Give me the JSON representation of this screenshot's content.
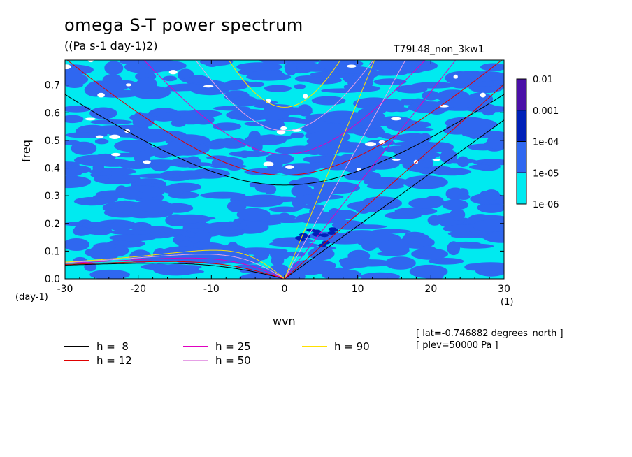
{
  "chart_data": {
    "type": "heatmap",
    "title": "omega S-T power spectrum",
    "subtitle": "((Pa s-1 day-1)2)",
    "run_label": "T79L48_non_3kw1",
    "xlabel": "wvn",
    "ylabel": "freq",
    "x_unit": "(1)",
    "y_unit": "(day-1)",
    "xlim": [
      -30,
      30
    ],
    "ylim": [
      0,
      0.79
    ],
    "x_ticks": [
      -30,
      -20,
      -10,
      0,
      10,
      20,
      30
    ],
    "x_tick_labels": [
      "-30",
      "-20",
      "-10",
      "0",
      "10",
      "20",
      "30"
    ],
    "y_ticks": [
      0,
      0.1,
      0.2,
      0.3,
      0.4,
      0.5,
      0.6,
      0.7
    ],
    "y_tick_labels": [
      "0.0",
      "0.1",
      "0.2",
      "0.3",
      "0.4",
      "0.5",
      "0.6",
      "0.7"
    ],
    "colorbar": {
      "levels": [
        "0.01",
        "0.001",
        "1e-04",
        "1e-05",
        "1e-06"
      ],
      "colors": [
        "#4a0fa8",
        "#0020b8",
        "#2f67f0",
        "#00eaf0"
      ]
    },
    "background_fill": "#00eaf0",
    "dominant_band_value": "1e-05 to 1e-04",
    "dispersion_curves": [
      {
        "name": "h =  8",
        "h": 8,
        "color": "#000000"
      },
      {
        "name": "h = 12",
        "h": 12,
        "color": "#e00000"
      },
      {
        "name": "h = 25",
        "h": 25,
        "color": "#e000c0"
      },
      {
        "name": "h = 50",
        "h": 50,
        "color": "#e6a0e6"
      },
      {
        "name": "h = 90",
        "h": 90,
        "color": "#ffe000"
      }
    ],
    "info_lines": [
      "[ lat=-0.746882 degrees_north ]",
      "[ plev=50000 Pa ]"
    ]
  }
}
